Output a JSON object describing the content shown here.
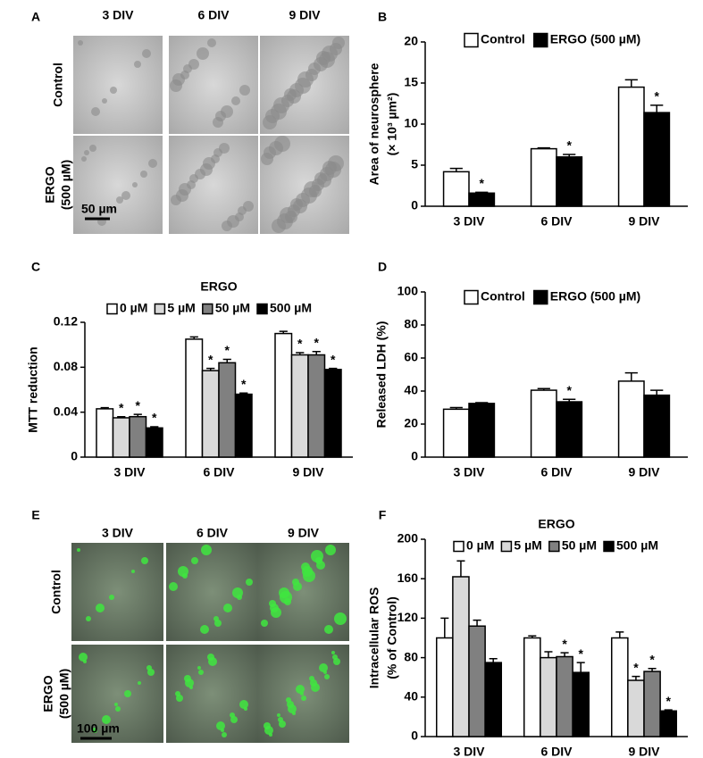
{
  "image_panels": [
    {
      "panel_label": "A",
      "columns": [
        "3 DIV",
        "6 DIV",
        "9 DIV"
      ],
      "rows": [
        [
          "Control"
        ],
        [
          "ERGO",
          "(500 µM)"
        ]
      ],
      "scale_bar": "50 µm"
    },
    {
      "panel_label": "E",
      "columns": [
        "3 DIV",
        "6 DIV",
        "9 DIV"
      ],
      "rows": [
        [
          "Control"
        ],
        [
          "ERGO",
          "(500 µM)"
        ]
      ],
      "scale_bar": "100 µm"
    }
  ],
  "chart_data": [
    {
      "type": "bar",
      "panel_label": "B",
      "ylabel": [
        "Area of neurosphere",
        "(× 10³ µm²)"
      ],
      "categories": [
        "3 DIV",
        "6 DIV",
        "9 DIV"
      ],
      "ylim": [
        0,
        20
      ],
      "yticks": [
        0,
        5,
        10,
        15,
        20
      ],
      "legend": "top",
      "sig_label": "*",
      "series": [
        {
          "name": "Control",
          "color": "#ffffff",
          "values": [
            4.2,
            7.0,
            14.5
          ],
          "errors": [
            0.4,
            0.1,
            0.9
          ],
          "significant": [
            false,
            false,
            false
          ]
        },
        {
          "name": "ERGO (500 µM)",
          "color": "#000000",
          "values": [
            1.6,
            6.0,
            11.4
          ],
          "errors": [
            0.1,
            0.3,
            0.9
          ],
          "significant": [
            true,
            true,
            true
          ]
        }
      ]
    },
    {
      "type": "bar",
      "panel_label": "C",
      "title": "ERGO",
      "ylabel": [
        "MTT reduction"
      ],
      "categories": [
        "3 DIV",
        "6 DIV",
        "9 DIV"
      ],
      "ylim": [
        0,
        0.12
      ],
      "yticks": [
        0,
        0.04,
        0.08,
        0.12
      ],
      "legend": "top",
      "sig_label": "*",
      "series": [
        {
          "name": "0 µM",
          "color": "#ffffff",
          "values": [
            0.043,
            0.105,
            0.11
          ],
          "errors": [
            0.001,
            0.002,
            0.002
          ],
          "significant": [
            false,
            false,
            false
          ]
        },
        {
          "name": "5 µM",
          "color": "#d9d9d9",
          "values": [
            0.035,
            0.077,
            0.091
          ],
          "errors": [
            0.001,
            0.002,
            0.002
          ],
          "significant": [
            true,
            true,
            true
          ]
        },
        {
          "name": "50 µM",
          "color": "#808080",
          "values": [
            0.036,
            0.084,
            0.091
          ],
          "errors": [
            0.002,
            0.003,
            0.003
          ],
          "significant": [
            true,
            true,
            true
          ]
        },
        {
          "name": "500 µM",
          "color": "#000000",
          "values": [
            0.026,
            0.056,
            0.078
          ],
          "errors": [
            0.001,
            0.001,
            0.001
          ],
          "significant": [
            true,
            true,
            true
          ]
        }
      ]
    },
    {
      "type": "bar",
      "panel_label": "D",
      "ylabel": [
        "Released LDH (%)"
      ],
      "categories": [
        "3 DIV",
        "6 DIV",
        "9 DIV"
      ],
      "ylim": [
        0,
        100
      ],
      "yticks": [
        0,
        20,
        40,
        60,
        80,
        100
      ],
      "legend": "top",
      "sig_label": "*",
      "series": [
        {
          "name": "Control",
          "color": "#ffffff",
          "values": [
            29,
            40.5,
            46
          ],
          "errors": [
            1,
            1,
            5
          ],
          "significant": [
            false,
            false,
            false
          ]
        },
        {
          "name": "ERGO (500 µM)",
          "color": "#000000",
          "values": [
            32.5,
            33.5,
            37.5
          ],
          "errors": [
            0.5,
            1.5,
            3
          ],
          "significant": [
            false,
            true,
            false
          ]
        }
      ]
    },
    {
      "type": "bar",
      "panel_label": "F",
      "title": "ERGO",
      "ylabel": [
        "Intracellular ROS",
        "(% of Control)"
      ],
      "categories": [
        "3 DIV",
        "6 DIV",
        "9 DIV"
      ],
      "ylim": [
        0,
        200
      ],
      "yticks": [
        0,
        40,
        80,
        120,
        160,
        200
      ],
      "legend": "top",
      "sig_label": "*",
      "series": [
        {
          "name": "0 µM",
          "color": "#ffffff",
          "values": [
            100,
            100,
            100
          ],
          "errors": [
            20,
            2,
            6
          ],
          "significant": [
            false,
            false,
            false
          ]
        },
        {
          "name": "5 µM",
          "color": "#d9d9d9",
          "values": [
            162,
            80,
            57
          ],
          "errors": [
            16,
            6,
            4
          ],
          "significant": [
            false,
            false,
            true
          ]
        },
        {
          "name": "50 µM",
          "color": "#808080",
          "values": [
            112,
            81,
            66
          ],
          "errors": [
            6,
            4,
            3
          ],
          "significant": [
            false,
            true,
            true
          ]
        },
        {
          "name": "500 µM",
          "color": "#000000",
          "values": [
            75,
            65,
            26
          ],
          "errors": [
            4,
            10,
            1
          ],
          "significant": [
            false,
            true,
            true
          ]
        }
      ]
    }
  ]
}
